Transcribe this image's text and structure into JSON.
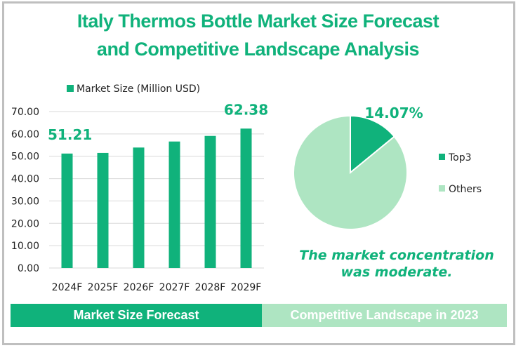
{
  "title": {
    "line1": "Italy Thermos Bottle Market Size Forecast",
    "line2": "and Competitive Landscape Analysis"
  },
  "colors": {
    "primary": "#10b27b",
    "light": "#aee5c2",
    "grid": "#d9d9d9",
    "frame": "#bfbfbf"
  },
  "chart_data": [
    {
      "type": "bar",
      "title": "",
      "legend": "Market Size (Million USD)",
      "legend_position": "top",
      "categories": [
        "2024F",
        "2025F",
        "2026F",
        "2027F",
        "2028F",
        "2029F"
      ],
      "series": [
        {
          "name": "Market Size (Million USD)",
          "values": [
            51.21,
            51.5,
            53.9,
            56.6,
            59.1,
            62.38
          ]
        }
      ],
      "data_labels": [
        {
          "index": 0,
          "text": "51.21"
        },
        {
          "index": 5,
          "text": "62.38"
        }
      ],
      "yticks": [
        "0.00",
        "10.00",
        "20.00",
        "30.00",
        "40.00",
        "50.00",
        "60.00",
        "70.00"
      ],
      "ylim": [
        0,
        70
      ],
      "grid": true,
      "xlabel": "",
      "ylabel": ""
    },
    {
      "type": "pie",
      "title": "",
      "slices": [
        {
          "name": "Top3",
          "value": 14.07
        },
        {
          "name": "Others",
          "value": 85.93
        }
      ],
      "data_labels": [
        {
          "slice": "Top3",
          "text": "14.07%"
        }
      ],
      "legend_position": "right"
    }
  ],
  "conclusion": {
    "line1": "The market concentration",
    "line2": "was moderate."
  },
  "banners": {
    "left": "Market Size Forecast",
    "right": "Competitive Landscape in 2023"
  }
}
